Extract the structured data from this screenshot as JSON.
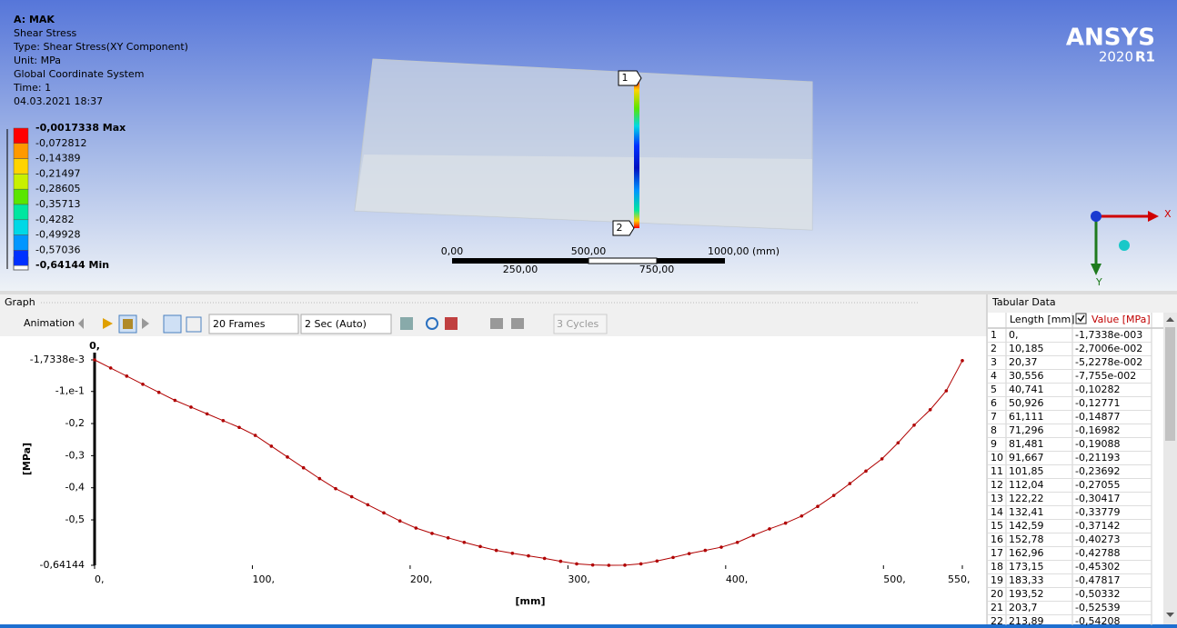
{
  "viewport": {
    "header": [
      "A: MAK",
      "Shear Stress",
      "Type: Shear Stress(XY Component)",
      "Unit: MPa",
      "Global Coordinate System",
      "Time: 1",
      "04.03.2021 18:37"
    ],
    "legend": {
      "labels": [
        "-0,0017338 Max",
        "-0,072812",
        "-0,14389",
        "-0,21497",
        "-0,28605",
        "-0,35713",
        "-0,4282",
        "-0,49928",
        "-0,57036",
        "-0,64144 Min"
      ],
      "colors": [
        "#ff0000",
        "#ff9900",
        "#ffd400",
        "#c8f000",
        "#5ae600",
        "#00e6a0",
        "#00d8e6",
        "#0096ff",
        "#0030ff"
      ]
    },
    "logo": {
      "name": "ANSYS",
      "version": "2020",
      "release": "R1"
    },
    "scale": {
      "top": [
        "0,00",
        "500,00",
        "1000,00 (mm)"
      ],
      "bottom": [
        "250,00",
        "750,00"
      ]
    },
    "probes": [
      "1",
      "2"
    ],
    "triad": [
      "X",
      "Y"
    ]
  },
  "graph_panel": {
    "title": "Graph",
    "toolbar": {
      "label": "Animation",
      "frames": "20 Frames",
      "duration": "2 Sec (Auto)",
      "cycles": "3 Cycles"
    }
  },
  "chart_data": {
    "type": "line",
    "x_start_label": "0,",
    "xlabel": "[mm]",
    "ylabel": "[MPa]",
    "x": [
      0,
      10.185,
      20.37,
      30.556,
      40.741,
      50.926,
      61.111,
      71.296,
      81.481,
      91.667,
      101.85,
      112.04,
      122.22,
      132.41,
      142.59,
      152.78,
      162.96,
      173.15,
      183.33,
      193.52,
      203.7,
      213.89,
      224.07,
      234.26,
      244.44,
      254.63,
      264.81,
      275,
      285.19,
      295.37,
      305.56,
      315.74,
      325.93,
      336.11,
      346.3,
      356.48,
      366.67,
      376.85,
      387.04,
      397.22,
      407.41,
      417.59,
      427.78,
      437.96,
      448.15,
      458.33,
      468.52,
      478.7,
      488.89,
      499.07,
      509.26,
      519.44,
      529.63,
      539.81,
      550
    ],
    "series": [
      {
        "color": "#b00000",
        "values": [
          -0.0017338,
          -0.027006,
          -0.052278,
          -0.07755,
          -0.10282,
          -0.12771,
          -0.14877,
          -0.16982,
          -0.19088,
          -0.21193,
          -0.23692,
          -0.27055,
          -0.30417,
          -0.33779,
          -0.37142,
          -0.40273,
          -0.42788,
          -0.45302,
          -0.47817,
          -0.50332,
          -0.52539,
          -0.54208,
          -0.556,
          -0.57,
          -0.583,
          -0.595,
          -0.604,
          -0.612,
          -0.62,
          -0.629,
          -0.637,
          -0.6405,
          -0.64144,
          -0.641,
          -0.637,
          -0.628,
          -0.617,
          -0.605,
          -0.595,
          -0.585,
          -0.57,
          -0.548,
          -0.528,
          -0.51,
          -0.488,
          -0.458,
          -0.424,
          -0.387,
          -0.348,
          -0.31,
          -0.26,
          -0.205,
          -0.157,
          -0.098,
          -0.004
        ]
      }
    ],
    "xlim": [
      0,
      550
    ],
    "ylim": [
      -0.64144,
      -0.0017338
    ],
    "xticks": [
      {
        "value": 0,
        "label": "0,"
      },
      {
        "value": 100,
        "label": "100,"
      },
      {
        "value": 200,
        "label": "200,"
      },
      {
        "value": 300,
        "label": "300,"
      },
      {
        "value": 400,
        "label": "400,"
      },
      {
        "value": 500,
        "label": "500,"
      },
      {
        "value": 550,
        "label": "550,"
      }
    ],
    "yticks": [
      {
        "value": -0.0017338,
        "label": "-1,7338e-3"
      },
      {
        "value": -0.1,
        "label": "-1,e-1"
      },
      {
        "value": -0.2,
        "label": "-0,2"
      },
      {
        "value": -0.3,
        "label": "-0,3"
      },
      {
        "value": -0.4,
        "label": "-0,4"
      },
      {
        "value": -0.5,
        "label": "-0,5"
      },
      {
        "value": -0.64144,
        "label": "-0,64144"
      }
    ],
    "grid": false
  },
  "tabular_panel": {
    "title": "Tabular Data",
    "columns": [
      "Length [mm]",
      "Value [MPa]"
    ],
    "rows": [
      [
        "1",
        "0,",
        "-1,7338e-003"
      ],
      [
        "2",
        "10,185",
        "-2,7006e-002"
      ],
      [
        "3",
        "20,37",
        "-5,2278e-002"
      ],
      [
        "4",
        "30,556",
        "-7,755e-002"
      ],
      [
        "5",
        "40,741",
        "-0,10282"
      ],
      [
        "6",
        "50,926",
        "-0,12771"
      ],
      [
        "7",
        "61,111",
        "-0,14877"
      ],
      [
        "8",
        "71,296",
        "-0,16982"
      ],
      [
        "9",
        "81,481",
        "-0,19088"
      ],
      [
        "10",
        "91,667",
        "-0,21193"
      ],
      [
        "11",
        "101,85",
        "-0,23692"
      ],
      [
        "12",
        "112,04",
        "-0,27055"
      ],
      [
        "13",
        "122,22",
        "-0,30417"
      ],
      [
        "14",
        "132,41",
        "-0,33779"
      ],
      [
        "15",
        "142,59",
        "-0,37142"
      ],
      [
        "16",
        "152,78",
        "-0,40273"
      ],
      [
        "17",
        "162,96",
        "-0,42788"
      ],
      [
        "18",
        "173,15",
        "-0,45302"
      ],
      [
        "19",
        "183,33",
        "-0,47817"
      ],
      [
        "20",
        "193,52",
        "-0,50332"
      ],
      [
        "21",
        "203,7",
        "-0,52539"
      ],
      [
        "22",
        "213,89",
        "-0,54208"
      ]
    ]
  }
}
